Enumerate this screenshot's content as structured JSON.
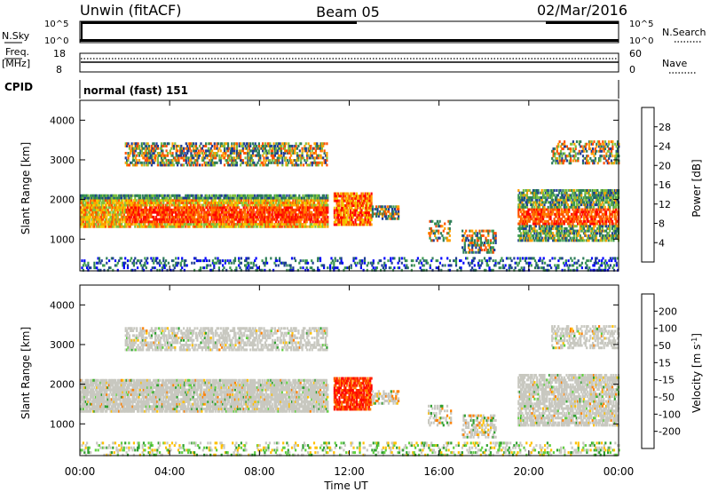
{
  "header": {
    "station": "Unwin (fitACF)",
    "beam": "Beam 05",
    "date": "02/Mar/2016"
  },
  "top_panels": {
    "nsky": {
      "left_label": "N.Sky",
      "left_ticks": [
        "10^5",
        "10^0"
      ],
      "right_label": "N.Search",
      "right_ticks": [
        "10^5",
        "10^0"
      ]
    },
    "freq": {
      "left_label_line1": "Freq.",
      "left_label_line2": "[MHz]",
      "left_ticks": [
        "18",
        "8"
      ],
      "right_label": "Nave",
      "right_ticks": [
        "60",
        "0"
      ]
    },
    "cpid": {
      "label": "CPID",
      "text": "normal (fast) 151"
    }
  },
  "colors": {
    "power_scale": [
      "#0000ff",
      "#1e3c96",
      "#2e7d5a",
      "#3c9a50",
      "#80c040",
      "#f0d000",
      "#ffa000",
      "#ff5000",
      "#ff0000"
    ],
    "velocity_scale": [
      "#2020c0",
      "#206040",
      "#30a030",
      "#60d040",
      "#c8c8c0",
      "#c0c0b8",
      "#ffc000",
      "#ff8000",
      "#ff4000",
      "#ff0000"
    ],
    "gray_scatter": "#c8c8c0"
  },
  "chart_data": [
    {
      "type": "heatmap",
      "title": "Power",
      "ylabel": "Slant Range [km]",
      "ylim": [
        200,
        4500
      ],
      "y_ticks": [
        "1000",
        "2000",
        "3000",
        "4000"
      ],
      "xlim": [
        "00:00",
        "24:00"
      ],
      "colorbar": {
        "label": "Power [dB]",
        "range": [
          0,
          32
        ],
        "ticks": [
          "28",
          "24",
          "20",
          "16",
          "12",
          "8",
          "4"
        ]
      },
      "features": [
        {
          "desc": "main band",
          "start": "00:00",
          "end": "11:00",
          "range_km": [
            1400,
            2100
          ]
        },
        {
          "desc": "upper band",
          "start": "02:00",
          "end": "11:00",
          "range_km": [
            2900,
            3400
          ]
        },
        {
          "desc": "burst",
          "start": "11:30",
          "end": "13:00",
          "range_km": [
            1500,
            2100
          ]
        },
        {
          "desc": "patches",
          "start": "13:00",
          "end": "18:30",
          "range_km": [
            600,
            1900
          ]
        },
        {
          "desc": "evening band",
          "start": "20:00",
          "end": "24:00",
          "range_km": [
            1100,
            2200
          ]
        },
        {
          "desc": "evening upper band",
          "start": "21:00",
          "end": "24:00",
          "range_km": [
            3000,
            3500
          ]
        }
      ]
    },
    {
      "type": "heatmap",
      "title": "Velocity",
      "ylabel": "Slant Range [km]",
      "xlabel": "Time UT",
      "ylim": [
        200,
        4500
      ],
      "y_ticks": [
        "1000",
        "2000",
        "3000",
        "4000"
      ],
      "x_ticks": [
        "00:00",
        "04:00",
        "08:00",
        "12:00",
        "16:00",
        "20:00",
        "00:00"
      ],
      "colorbar": {
        "label": "Velocity [m s^-1]",
        "ticks": [
          "200",
          "100",
          "50",
          "15",
          "-15",
          "-50",
          "-100",
          "-200"
        ]
      },
      "features": [
        {
          "desc": "low-velocity band",
          "start": "00:00",
          "end": "11:00",
          "range_km": [
            1300,
            2100
          ]
        },
        {
          "desc": "negative-velocity burst",
          "start": "11:30",
          "end": "13:00",
          "range_km": [
            1500,
            2100
          ]
        },
        {
          "desc": "low-velocity evening band",
          "start": "20:00",
          "end": "24:00",
          "range_km": [
            1100,
            2200
          ]
        }
      ]
    }
  ]
}
